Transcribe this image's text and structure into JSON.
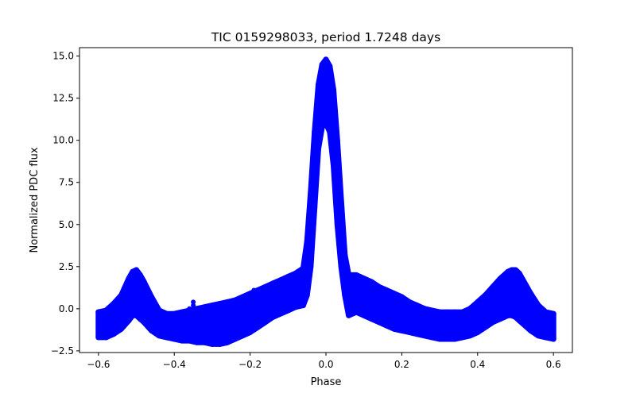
{
  "chart_data": {
    "type": "scatter",
    "title": "TIC 0159298033, period 1.7248 days",
    "xlabel": "Phase",
    "ylabel": "Normalized PDC flux",
    "xlim": [
      -0.65,
      0.65
    ],
    "ylim": [
      -2.6,
      15.5
    ],
    "xticks": [
      -0.6,
      -0.4,
      -0.2,
      0.0,
      0.2,
      0.4,
      0.6
    ],
    "xtick_labels": [
      "−0.6",
      "−0.4",
      "−0.2",
      "0.0",
      "0.2",
      "0.4",
      "0.6"
    ],
    "yticks": [
      -2.5,
      0.0,
      2.5,
      5.0,
      7.5,
      10.0,
      12.5,
      15.0
    ],
    "ytick_labels": [
      "−2.5",
      "0.0",
      "2.5",
      "5.0",
      "7.5",
      "10.0",
      "12.5",
      "15.0"
    ],
    "grid": false,
    "marker_color": "#0000ff",
    "series": [
      {
        "x": [
          -0.6,
          -0.58,
          -0.56,
          -0.54,
          -0.52,
          -0.51,
          -0.5,
          -0.49,
          -0.48,
          -0.46,
          -0.44,
          -0.42,
          -0.4,
          -0.38,
          -0.36,
          -0.34,
          -0.32,
          -0.3,
          -0.28,
          -0.26,
          -0.24,
          -0.22,
          -0.2,
          -0.18,
          -0.16,
          -0.14,
          -0.12,
          -0.1,
          -0.08,
          -0.06,
          -0.05,
          -0.04,
          -0.03,
          -0.02,
          -0.01,
          0.0,
          0.01,
          0.02,
          0.03,
          0.04,
          0.05,
          0.06,
          0.08,
          0.1,
          0.12,
          0.14,
          0.16,
          0.18,
          0.2,
          0.22,
          0.24,
          0.26,
          0.28,
          0.3,
          0.32,
          0.34,
          0.36,
          0.38,
          0.4,
          0.42,
          0.44,
          0.46,
          0.48,
          0.49,
          0.5,
          0.51,
          0.52,
          0.54,
          0.56,
          0.58,
          0.6
        ],
        "upper": [
          -0.2,
          -0.1,
          0.3,
          0.8,
          1.8,
          2.2,
          2.3,
          2.0,
          1.6,
          0.7,
          -0.1,
          -0.3,
          -0.3,
          -0.2,
          -0.1,
          0.0,
          0.1,
          0.2,
          0.3,
          0.4,
          0.5,
          0.7,
          0.9,
          1.1,
          1.3,
          1.5,
          1.7,
          1.9,
          2.1,
          2.4,
          4.0,
          7.0,
          10.5,
          13.3,
          14.5,
          14.8,
          14.4,
          13.0,
          10.0,
          6.5,
          3.2,
          2.0,
          2.0,
          1.8,
          1.6,
          1.3,
          1.1,
          0.9,
          0.7,
          0.4,
          0.2,
          0.0,
          -0.1,
          -0.2,
          -0.2,
          -0.2,
          -0.2,
          0.0,
          0.4,
          0.8,
          1.3,
          1.8,
          2.2,
          2.3,
          2.3,
          2.1,
          1.7,
          0.9,
          0.2,
          -0.2,
          -0.3
        ],
        "lower": [
          -1.7,
          -1.7,
          -1.5,
          -1.2,
          -0.7,
          -0.4,
          -0.4,
          -0.6,
          -0.8,
          -1.3,
          -1.6,
          -1.7,
          -1.8,
          -1.9,
          -1.9,
          -2.0,
          -2.0,
          -2.1,
          -2.1,
          -2.0,
          -1.8,
          -1.6,
          -1.4,
          -1.1,
          -0.8,
          -0.5,
          -0.3,
          -0.1,
          0.1,
          0.2,
          0.8,
          2.5,
          6.0,
          9.5,
          10.8,
          11.0,
          10.5,
          8.5,
          5.0,
          2.5,
          0.8,
          -0.4,
          -0.2,
          -0.4,
          -0.6,
          -0.8,
          -1.0,
          -1.2,
          -1.3,
          -1.4,
          -1.5,
          -1.6,
          -1.7,
          -1.8,
          -1.8,
          -1.8,
          -1.7,
          -1.6,
          -1.4,
          -1.1,
          -0.8,
          -0.6,
          -0.4,
          -0.4,
          -0.5,
          -0.7,
          -0.9,
          -1.3,
          -1.6,
          -1.7,
          -1.8
        ]
      }
    ],
    "outliers": [
      {
        "x": -0.36,
        "y": 0.0
      },
      {
        "x": -0.35,
        "y": 0.2
      },
      {
        "x": -0.35,
        "y": 0.4
      },
      {
        "x": -0.33,
        "y": 0.0
      },
      {
        "x": -0.19,
        "y": 1.1
      }
    ]
  }
}
